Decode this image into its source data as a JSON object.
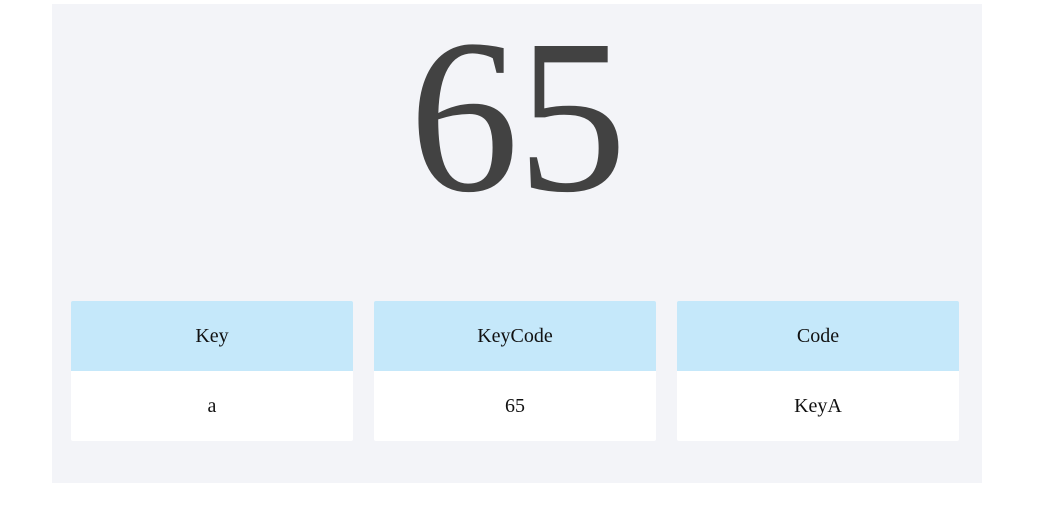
{
  "main": {
    "big_keycode": "65"
  },
  "cards": [
    {
      "header": "Key",
      "value": "a"
    },
    {
      "header": "KeyCode",
      "value": "65"
    },
    {
      "header": "Code",
      "value": "KeyA"
    }
  ],
  "colors": {
    "panel_bg": "#f3f4f8",
    "header_bg": "#c5e8fa",
    "value_bg": "#ffffff",
    "big_text": "#424242"
  }
}
